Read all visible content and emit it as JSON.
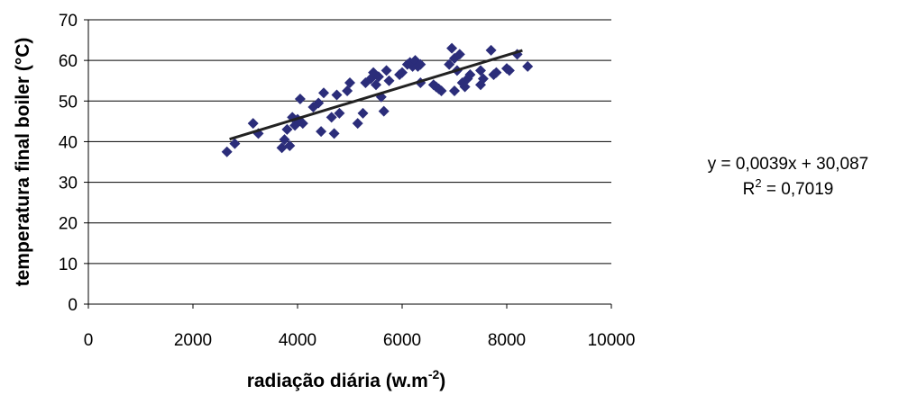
{
  "chart_data": {
    "type": "scatter",
    "title": "",
    "xlabel": "radiação diária (w.m",
    "xlabel_sup": "-2",
    "xlabel_suffix": ")",
    "ylabel": "temperatura final boiler (°C)",
    "xlim": [
      0,
      10000
    ],
    "ylim": [
      0,
      70
    ],
    "x_ticks": [
      "0",
      "2000",
      "4000",
      "6000",
      "8000",
      "10000"
    ],
    "y_ticks": [
      "0",
      "10",
      "20",
      "30",
      "40",
      "50",
      "60",
      "70"
    ],
    "grid": true,
    "marker_color": "#2b2d7a",
    "trendline": {
      "slope": 0.0039,
      "intercept": 30.087,
      "x_range": [
        2700,
        8300
      ],
      "color": "#222222"
    },
    "equation": "y = 0,0039x + 30,087",
    "r2_label": "R",
    "r2_sup": "2",
    "r2_value": " = 0,7019",
    "series": [
      {
        "points": [
          [
            2650,
            37.5
          ],
          [
            2800,
            39.5
          ],
          [
            3150,
            44.5
          ],
          [
            3250,
            42.0
          ],
          [
            3700,
            38.5
          ],
          [
            3750,
            40.5
          ],
          [
            3800,
            43.0
          ],
          [
            3850,
            39.0
          ],
          [
            3900,
            46.0
          ],
          [
            3950,
            44.0
          ],
          [
            4000,
            45.5
          ],
          [
            4050,
            50.5
          ],
          [
            4100,
            44.5
          ],
          [
            4300,
            48.5
          ],
          [
            4400,
            49.5
          ],
          [
            4450,
            42.5
          ],
          [
            4500,
            52.0
          ],
          [
            4650,
            46.0
          ],
          [
            4700,
            42.0
          ],
          [
            4750,
            51.5
          ],
          [
            4800,
            47.0
          ],
          [
            4950,
            52.5
          ],
          [
            5000,
            54.5
          ],
          [
            5150,
            44.5
          ],
          [
            5250,
            47.0
          ],
          [
            5300,
            54.5
          ],
          [
            5400,
            55.5
          ],
          [
            5450,
            57.0
          ],
          [
            5500,
            54.0
          ],
          [
            5550,
            56.0
          ],
          [
            5600,
            51.0
          ],
          [
            5650,
            47.5
          ],
          [
            5700,
            57.5
          ],
          [
            5750,
            55.0
          ],
          [
            5950,
            56.5
          ],
          [
            6000,
            57.0
          ],
          [
            6100,
            59.0
          ],
          [
            6150,
            59.5
          ],
          [
            6200,
            58.5
          ],
          [
            6250,
            60.0
          ],
          [
            6300,
            58.5
          ],
          [
            6350,
            59.0
          ],
          [
            6350,
            54.5
          ],
          [
            6600,
            54.0
          ],
          [
            6650,
            53.5
          ],
          [
            6700,
            53.0
          ],
          [
            6750,
            52.5
          ],
          [
            6900,
            59.0
          ],
          [
            6950,
            63.0
          ],
          [
            7000,
            52.5
          ],
          [
            7000,
            60.5
          ],
          [
            7050,
            57.5
          ],
          [
            7100,
            61.5
          ],
          [
            7150,
            54.5
          ],
          [
            7200,
            53.5
          ],
          [
            7250,
            55.5
          ],
          [
            7300,
            56.5
          ],
          [
            7500,
            54.0
          ],
          [
            7500,
            57.5
          ],
          [
            7550,
            55.5
          ],
          [
            7700,
            62.5
          ],
          [
            7750,
            56.5
          ],
          [
            7800,
            57.0
          ],
          [
            8000,
            58.0
          ],
          [
            8050,
            57.5
          ],
          [
            8200,
            61.5
          ],
          [
            8400,
            58.5
          ]
        ]
      }
    ]
  }
}
